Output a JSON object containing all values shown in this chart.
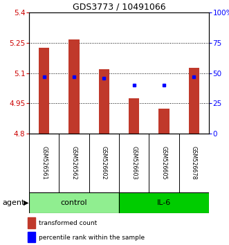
{
  "title": "GDS3773 / 10491066",
  "samples": [
    "GSM526561",
    "GSM526562",
    "GSM526602",
    "GSM526603",
    "GSM526605",
    "GSM526678"
  ],
  "groups": [
    "control",
    "control",
    "control",
    "IL-6",
    "IL-6",
    "IL-6"
  ],
  "transformed_counts": [
    5.225,
    5.265,
    5.12,
    4.975,
    4.925,
    5.125
  ],
  "percentile_ranks": [
    47,
    47,
    46,
    40,
    40,
    47
  ],
  "bar_bottom": 4.8,
  "ylim": [
    4.8,
    5.4
  ],
  "yticks": [
    4.8,
    4.95,
    5.1,
    5.25,
    5.4
  ],
  "ytick_labels": [
    "4.8",
    "4.95",
    "5.1",
    "5.25",
    "5.4"
  ],
  "right_yticks": [
    0,
    25,
    50,
    75,
    100
  ],
  "right_ytick_labels": [
    "0",
    "25",
    "50",
    "75",
    "100%"
  ],
  "bar_color": "#c0392b",
  "dot_color": "#0000ff",
  "control_color": "#90ee90",
  "il6_color": "#00cc00",
  "sample_bg_color": "#d3d3d3",
  "group_label_control": "control",
  "group_label_il6": "IL-6",
  "agent_label": "agent",
  "legend_bar_label": "transformed count",
  "legend_dot_label": "percentile rank within the sample",
  "left_tick_color": "#cc0000",
  "right_tick_color": "#0000ff",
  "background_color": "#ffffff",
  "grid_yticks": [
    4.95,
    5.1,
    5.25
  ],
  "n_samples": 6,
  "n_control": 3,
  "n_il6": 3
}
